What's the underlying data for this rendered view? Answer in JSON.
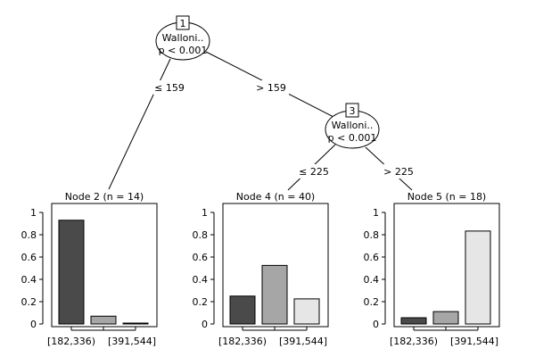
{
  "tree": {
    "nodes": [
      {
        "id": "1",
        "label": "Walloni..",
        "p": "p < 0.001"
      },
      {
        "id": "3",
        "label": "Walloni..",
        "p": "p < 0.001"
      }
    ],
    "edges": [
      {
        "from": "1",
        "to": "2",
        "label": "≤ 159"
      },
      {
        "from": "1",
        "to": "3",
        "label": "> 159"
      },
      {
        "from": "3",
        "to": "4",
        "label": "≤ 225"
      },
      {
        "from": "3",
        "to": "5",
        "label": "> 225"
      }
    ]
  },
  "chart_data": [
    {
      "type": "bar",
      "title": "Node 2 (n = 14)",
      "categories": [
        "[182,336)",
        "",
        "[391,544]"
      ],
      "values": [
        0.93,
        0.07,
        0.0
      ],
      "colors": [
        "#4a4a4a",
        "#a6a6a6",
        "#e6e6e6"
      ],
      "yticks": [
        "0",
        "0.2",
        "0.4",
        "0.6",
        "0.8",
        "1"
      ],
      "ylim": [
        0,
        1
      ]
    },
    {
      "type": "bar",
      "title": "Node 4 (n = 40)",
      "categories": [
        "[182,336)",
        "",
        "[391,544]"
      ],
      "values": [
        0.25,
        0.525,
        0.225
      ],
      "colors": [
        "#4a4a4a",
        "#a6a6a6",
        "#e6e6e6"
      ],
      "yticks": [
        "0",
        "0.2",
        "0.4",
        "0.6",
        "0.8",
        "1"
      ],
      "ylim": [
        0,
        1
      ]
    },
    {
      "type": "bar",
      "title": "Node 5 (n = 18)",
      "categories": [
        "[182,336)",
        "",
        "[391,544]"
      ],
      "values": [
        0.056,
        0.111,
        0.833
      ],
      "colors": [
        "#4a4a4a",
        "#a6a6a6",
        "#e6e6e6"
      ],
      "yticks": [
        "0",
        "0.2",
        "0.4",
        "0.6",
        "0.8",
        "1"
      ],
      "ylim": [
        0,
        1
      ]
    }
  ]
}
